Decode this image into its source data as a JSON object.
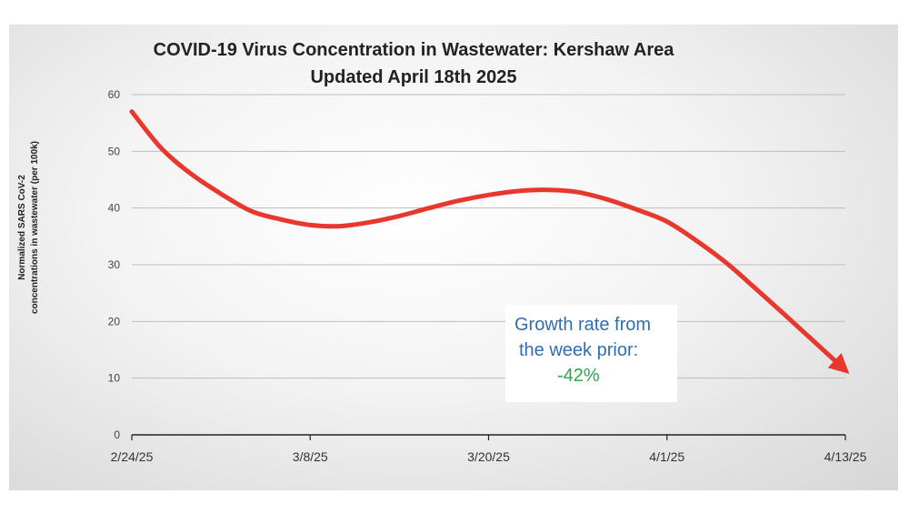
{
  "chart_data": {
    "type": "line",
    "title_lines": [
      "COVID-19 Virus Concentration in Wastewater: Kershaw Area",
      "Updated April 18th 2025"
    ],
    "ylabel_lines": [
      "Normalized SARS CoV-2",
      "concentrations in wastewater (per 100k)"
    ],
    "xlabel": "",
    "ylim": [
      0,
      60
    ],
    "yticks": [
      0,
      10,
      20,
      30,
      40,
      50,
      60
    ],
    "xlim": [
      "2/24/25",
      "4/13/25"
    ],
    "xticks": [
      "2/24/25",
      "3/8/25",
      "3/20/25",
      "4/1/25",
      "4/13/25"
    ],
    "grid": true,
    "series": [
      {
        "color": "#e8372c",
        "x": [
          "2/24/25",
          "2/26/25",
          "2/28/25",
          "3/2/25",
          "3/4/25",
          "3/6/25",
          "3/8/25",
          "3/10/25",
          "3/12/25",
          "3/14/25",
          "3/16/25",
          "3/18/25",
          "3/20/25",
          "3/22/25",
          "3/24/25",
          "3/26/25",
          "3/28/25",
          "3/30/25",
          "4/1/25",
          "4/3/25",
          "4/5/25",
          "4/7/25",
          "4/9/25",
          "4/11/25",
          "4/13/25"
        ],
        "values": [
          57,
          50.5,
          46,
          42.5,
          39.5,
          38,
          37,
          36.8,
          37.5,
          38.6,
          40,
          41.3,
          42.3,
          43,
          43.2,
          42.8,
          41.5,
          39.7,
          37.6,
          34.2,
          30.3,
          25.7,
          21,
          16.2,
          11.4
        ]
      }
    ],
    "annotation": {
      "lines": [
        "Growth rate from",
        "the week prior:"
      ],
      "value": "-42%",
      "value_color": "#2aa84a",
      "text_color": "#2f6db5"
    }
  }
}
